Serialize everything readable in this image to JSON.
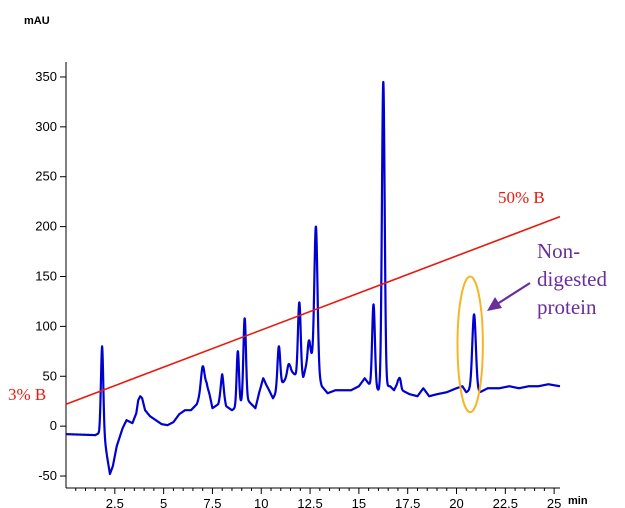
{
  "chart_data": {
    "type": "line",
    "ylabel": "mAU",
    "xlabel": "min",
    "xlim": [
      0,
      25.3
    ],
    "ylim": [
      -62,
      365
    ],
    "x_ticks": [
      2.5,
      5,
      7.5,
      10,
      12.5,
      15,
      17.5,
      20,
      22.5,
      25
    ],
    "x_tick_labels": [
      "2.5",
      "5",
      "7.5",
      "10",
      "12.5",
      "15",
      "17.5",
      "20",
      "22.5",
      "25"
    ],
    "y_ticks": [
      -50,
      0,
      50,
      100,
      150,
      200,
      250,
      300,
      350
    ],
    "y_tick_labels": [
      "-50",
      "0",
      "50",
      "100",
      "150",
      "200",
      "250",
      "300",
      "350"
    ],
    "grid": false,
    "baseline": [
      [
        0,
        -8
      ],
      [
        1.5,
        -9
      ],
      [
        1.7,
        -7
      ],
      [
        1.85,
        5
      ],
      [
        2.1,
        -30
      ],
      [
        2.25,
        -48
      ],
      [
        2.4,
        -40
      ],
      [
        2.6,
        -20
      ],
      [
        2.9,
        -2
      ],
      [
        3.1,
        6
      ],
      [
        3.4,
        3
      ],
      [
        3.6,
        13
      ],
      [
        3.7,
        26
      ],
      [
        3.8,
        30
      ],
      [
        3.9,
        28
      ],
      [
        4.05,
        16
      ],
      [
        4.3,
        10
      ],
      [
        4.6,
        6
      ],
      [
        4.9,
        2
      ],
      [
        5.2,
        1
      ],
      [
        5.5,
        4
      ],
      [
        5.8,
        12
      ],
      [
        6.1,
        16
      ],
      [
        6.4,
        16
      ],
      [
        6.7,
        22
      ],
      [
        7.0,
        38
      ],
      [
        7.2,
        42
      ],
      [
        7.35,
        32
      ],
      [
        7.5,
        18
      ],
      [
        7.8,
        22
      ],
      [
        8.0,
        36
      ],
      [
        8.2,
        20
      ],
      [
        8.5,
        16
      ],
      [
        8.8,
        20
      ],
      [
        9.2,
        28
      ],
      [
        9.5,
        22
      ],
      [
        9.7,
        18
      ],
      [
        9.9,
        34
      ],
      [
        10.1,
        46
      ],
      [
        10.35,
        38
      ],
      [
        10.6,
        28
      ],
      [
        10.9,
        38
      ],
      [
        11.2,
        46
      ],
      [
        11.5,
        56
      ],
      [
        11.8,
        50
      ],
      [
        12.15,
        48
      ],
      [
        12.4,
        70
      ],
      [
        12.55,
        70
      ],
      [
        12.8,
        58
      ],
      [
        13.1,
        40
      ],
      [
        13.4,
        33
      ],
      [
        13.8,
        36
      ],
      [
        14.2,
        36
      ],
      [
        14.6,
        36
      ],
      [
        15.0,
        40
      ],
      [
        15.3,
        48
      ],
      [
        15.6,
        40
      ],
      [
        16.0,
        36
      ],
      [
        16.3,
        40
      ],
      [
        16.6,
        40
      ],
      [
        16.8,
        36
      ],
      [
        17.0,
        44
      ],
      [
        17.2,
        36
      ],
      [
        17.6,
        32
      ],
      [
        18.0,
        30
      ],
      [
        18.3,
        38
      ],
      [
        18.6,
        30
      ],
      [
        19.0,
        32
      ],
      [
        19.5,
        34
      ],
      [
        20.0,
        38
      ],
      [
        20.3,
        40
      ],
      [
        20.5,
        34
      ],
      [
        20.8,
        38
      ],
      [
        21.2,
        34
      ],
      [
        21.6,
        38
      ],
      [
        22.2,
        38
      ],
      [
        22.7,
        40
      ],
      [
        23.2,
        38
      ],
      [
        23.7,
        40
      ],
      [
        24.2,
        40
      ],
      [
        24.7,
        42
      ],
      [
        25.3,
        40
      ]
    ],
    "peaks": [
      {
        "x": 1.85,
        "y": 80,
        "w": 0.06
      },
      {
        "x": 7.0,
        "y": 60,
        "w": 0.09
      },
      {
        "x": 8.0,
        "y": 52,
        "w": 0.07
      },
      {
        "x": 8.8,
        "y": 75,
        "w": 0.06
      },
      {
        "x": 9.15,
        "y": 108,
        "w": 0.065
      },
      {
        "x": 10.1,
        "y": 48,
        "w": 0.09
      },
      {
        "x": 10.9,
        "y": 80,
        "w": 0.07
      },
      {
        "x": 11.4,
        "y": 62,
        "w": 0.07
      },
      {
        "x": 11.95,
        "y": 124,
        "w": 0.07
      },
      {
        "x": 12.45,
        "y": 86,
        "w": 0.06
      },
      {
        "x": 12.8,
        "y": 200,
        "w": 0.08
      },
      {
        "x": 15.75,
        "y": 122,
        "w": 0.07
      },
      {
        "x": 16.25,
        "y": 345,
        "w": 0.07
      },
      {
        "x": 17.1,
        "y": 48,
        "w": 0.06
      },
      {
        "x": 20.9,
        "y": 112,
        "w": 0.09
      }
    ],
    "gradient_line": {
      "x": [
        0,
        25.3
      ],
      "y": [
        22,
        210
      ],
      "color": "#e8190e"
    },
    "trace_color": "#0000d0",
    "annotations": {
      "start_label": "3% B",
      "end_label": "50% B",
      "callout_lines": [
        "Non-",
        "digested",
        "protein"
      ],
      "callout_color": "#6a2e9a",
      "ellipse_color": "#f5b525",
      "ellipse_center": {
        "x": 20.7,
        "y": 82
      },
      "ellipse_rx_min": 0.65,
      "ellipse_ry_mau": 68
    }
  }
}
